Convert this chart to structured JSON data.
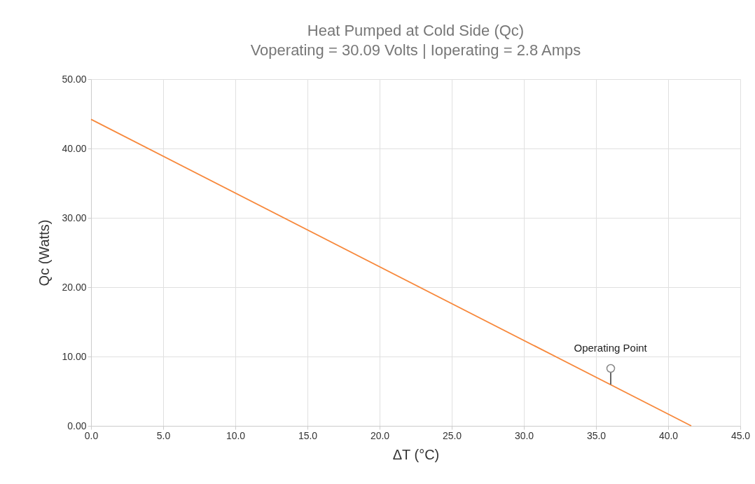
{
  "chart_data": {
    "type": "line",
    "title": "Heat Pumped at Cold Side (Qc)",
    "subtitle": "Voperating = 30.09 Volts | Ioperating = 2.8 Amps",
    "xlabel": "ΔT (°C)",
    "ylabel": "Qc (Watts)",
    "x": [
      0,
      41.6
    ],
    "series": [
      {
        "color": "#f7883b",
        "values": [
          44.2,
          0
        ]
      }
    ],
    "xlim": [
      0,
      45
    ],
    "ylim": [
      0,
      50
    ],
    "xticks": [
      {
        "value": 0,
        "label": "0.0"
      },
      {
        "value": 5,
        "label": "5.0"
      },
      {
        "value": 10,
        "label": "10.0"
      },
      {
        "value": 15,
        "label": "15.0"
      },
      {
        "value": 20,
        "label": "20.0"
      },
      {
        "value": 25,
        "label": "25.0"
      },
      {
        "value": 30,
        "label": "30.0"
      },
      {
        "value": 35,
        "label": "35.0"
      },
      {
        "value": 40,
        "label": "40.0"
      },
      {
        "value": 45,
        "label": "45.0"
      }
    ],
    "yticks": [
      {
        "value": 0,
        "label": "0.00"
      },
      {
        "value": 10,
        "label": "10.00"
      },
      {
        "value": 20,
        "label": "20.00"
      },
      {
        "value": 30,
        "label": "30.00"
      },
      {
        "value": 40,
        "label": "40.00"
      },
      {
        "value": 50,
        "label": "50.00"
      }
    ],
    "annotations": [
      {
        "text": "Operating Point",
        "x": 36,
        "y": 6
      }
    ],
    "grid": true,
    "marker": "none",
    "line_style": "solid"
  }
}
